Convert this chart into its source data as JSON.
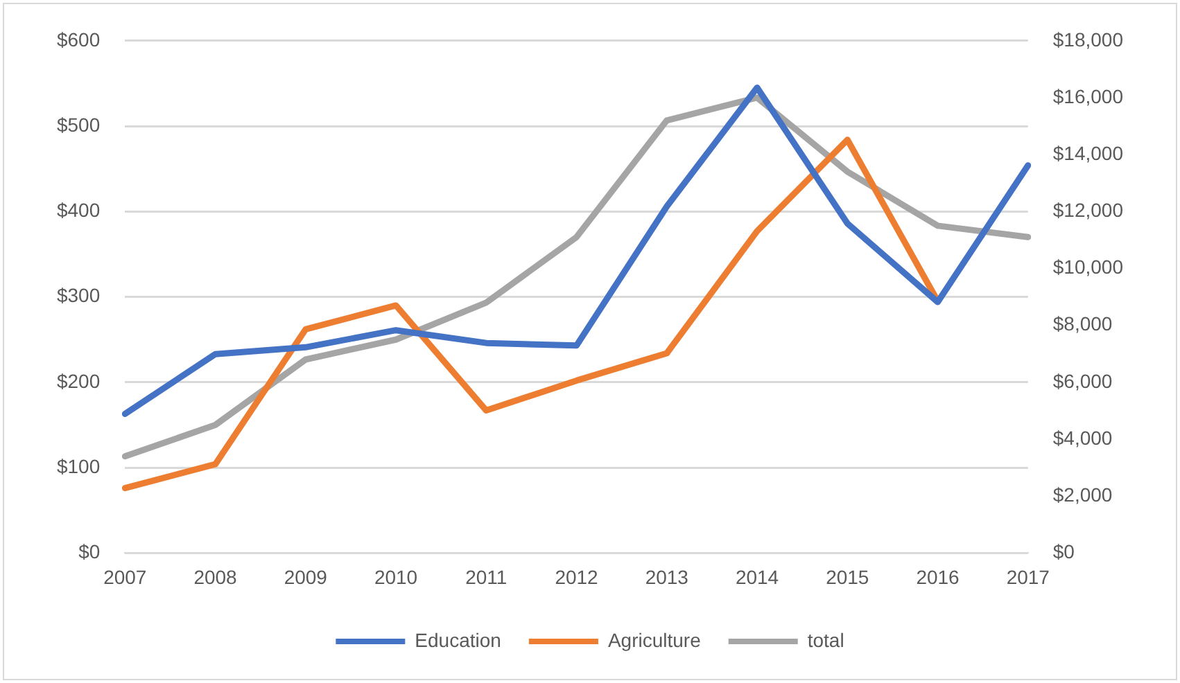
{
  "chart_data": {
    "type": "line",
    "categories": [
      "2007",
      "2008",
      "2009",
      "2010",
      "2011",
      "2012",
      "2013",
      "2014",
      "2015",
      "2016",
      "2017"
    ],
    "series": [
      {
        "name": "Education",
        "color": "#4472c4",
        "values": [
          163,
          233,
          241,
          261,
          246,
          243,
          406,
          545,
          386,
          294,
          454
        ]
      },
      {
        "name": "Agriculture",
        "color": "#ed7d31",
        "values": [
          76,
          104,
          262,
          290,
          167,
          202,
          234,
          377,
          484,
          295,
          null
        ]
      },
      {
        "name": "total",
        "color": "#a5a5a5",
        "axis": "y2",
        "values": [
          3400,
          4500,
          6800,
          7500,
          8800,
          11100,
          15200,
          16000,
          13400,
          11500,
          11100
        ]
      }
    ],
    "ylim": [
      0,
      600
    ],
    "yticks": [
      {
        "value": 0,
        "label": "$0"
      },
      {
        "value": 100,
        "label": "$100"
      },
      {
        "value": 200,
        "label": "$200"
      },
      {
        "value": 300,
        "label": "$300"
      },
      {
        "value": 400,
        "label": "$400"
      },
      {
        "value": 500,
        "label": "$500"
      },
      {
        "value": 600,
        "label": "$600"
      }
    ],
    "y2lim": [
      0,
      18000
    ],
    "y2ticks": [
      {
        "value": 0,
        "label": "$0"
      },
      {
        "value": 2000,
        "label": "$2,000"
      },
      {
        "value": 4000,
        "label": "$4,000"
      },
      {
        "value": 6000,
        "label": "$6,000"
      },
      {
        "value": 8000,
        "label": "$8,000"
      },
      {
        "value": 10000,
        "label": "$10,000"
      },
      {
        "value": 12000,
        "label": "$12,000"
      },
      {
        "value": 14000,
        "label": "$14,000"
      },
      {
        "value": 16000,
        "label": "$16,000"
      },
      {
        "value": 18000,
        "label": "$18,000"
      }
    ],
    "grid": "y",
    "legend": "bottom",
    "marker": "none",
    "line_style": "solid"
  }
}
